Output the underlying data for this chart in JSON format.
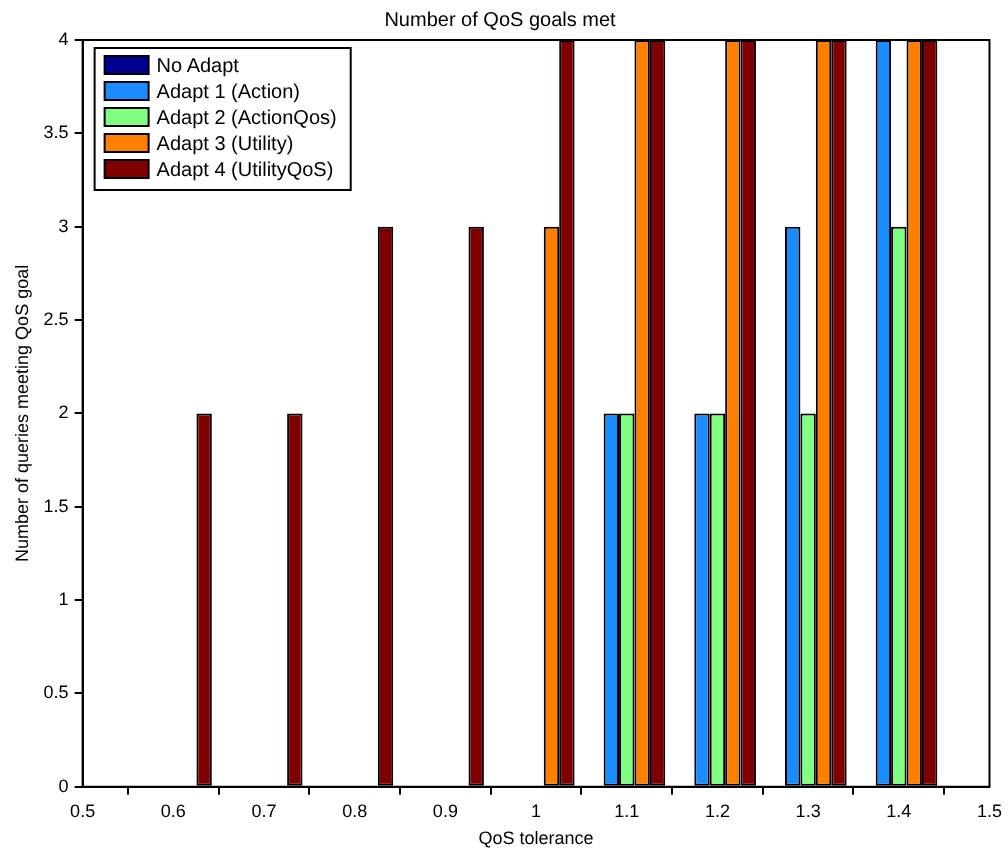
{
  "chart_data": {
    "type": "bar",
    "title": "Number of QoS goals met",
    "xlabel": "QoS tolerance",
    "ylabel": "Number of queries meeting QoS goal",
    "x": [
      0.6,
      0.7,
      0.8,
      0.9,
      1.0,
      1.1,
      1.2,
      1.3,
      1.4
    ],
    "series": [
      {
        "name": "No Adapt",
        "color": "#00008f",
        "values": [
          0,
          0,
          0,
          0,
          0,
          0,
          0,
          0,
          0
        ]
      },
      {
        "name": "Adapt 1 (Action)",
        "color": "#1a8cff",
        "values": [
          0,
          0,
          0,
          0,
          0,
          2,
          2,
          3,
          4
        ]
      },
      {
        "name": "Adapt 2 (ActionQos)",
        "color": "#80ff80",
        "values": [
          0,
          0,
          0,
          0,
          0,
          2,
          2,
          2,
          3
        ]
      },
      {
        "name": "Adapt 3 (Utility)",
        "color": "#ff8000",
        "values": [
          0,
          0,
          0,
          0,
          3,
          4,
          4,
          4,
          4
        ]
      },
      {
        "name": "Adapt 4 (UtilityQoS)",
        "color": "#800000",
        "values": [
          2,
          2,
          3,
          3,
          4,
          4,
          4,
          4,
          4
        ]
      }
    ],
    "xlim": [
      0.5,
      1.5
    ],
    "xticks": [
      0.5,
      0.6,
      0.7,
      0.8,
      0.9,
      1,
      1.1,
      1.2,
      1.3,
      1.4,
      1.5
    ],
    "ylim": [
      0,
      4
    ],
    "yticks": [
      0,
      0.5,
      1,
      1.5,
      2,
      2.5,
      3,
      3.5,
      4
    ],
    "grid": false,
    "legend": "top left"
  }
}
